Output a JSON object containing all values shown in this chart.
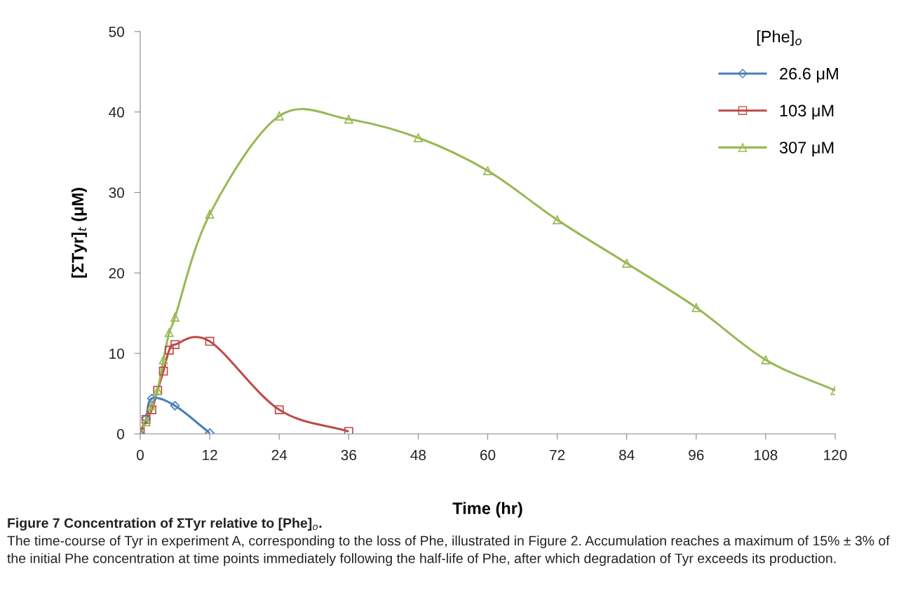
{
  "chart_data": {
    "type": "line",
    "xlabel": "Time (hr)",
    "ylabel": "[ΣTyr]$_{t}$ (μM)",
    "legend_title": "[Phe]$_{o}$",
    "xlim": [
      0,
      120
    ],
    "xticks": [
      0,
      12,
      24,
      36,
      48,
      60,
      72,
      84,
      96,
      108,
      120
    ],
    "ylim": [
      0,
      50
    ],
    "yticks": [
      0,
      10,
      20,
      30,
      40,
      50
    ],
    "grid": false,
    "legend": "top right",
    "line_style": "solid",
    "series": [
      {
        "name": "26.6 μM",
        "color": "#4a7ebb",
        "marker": "diamond",
        "x": [
          0,
          1,
          2,
          6,
          12
        ],
        "values": [
          0,
          1.9,
          4.4,
          3.5,
          0.1
        ]
      },
      {
        "name": "103 μM",
        "color": "#be4b48",
        "marker": "square",
        "x": [
          0,
          1,
          2,
          3,
          4,
          5,
          6,
          12,
          24,
          36
        ],
        "values": [
          0.2,
          1.8,
          3.0,
          5.4,
          7.8,
          10.4,
          11.1,
          11.5,
          3.0,
          0.3
        ]
      },
      {
        "name": "307 μM",
        "color": "#98b954",
        "marker": "triangle",
        "x": [
          0,
          1,
          2,
          3,
          4,
          5,
          6,
          12,
          24,
          36,
          48,
          60,
          72,
          84,
          96,
          108,
          120
        ],
        "values": [
          0,
          1.5,
          3.5,
          5.4,
          9.2,
          12.6,
          14.5,
          27.3,
          39.5,
          39.1,
          36.8,
          32.7,
          26.6,
          21.2,
          15.7,
          9.2,
          5.4
        ]
      }
    ],
    "annotations": [
      "Figure 7 Concentration of ΣTyr relative to [Phe]$_{o}$.",
      "The time-course of Tyr in experiment A, corresponding to the loss of Phe, illustrated in Figure 2. Accumulation reaches a maximum of 15% ± 3% of the initial Phe concentration at time points immediately following the half-life of Phe, after which degradation of Tyr exceeds its production."
    ]
  }
}
